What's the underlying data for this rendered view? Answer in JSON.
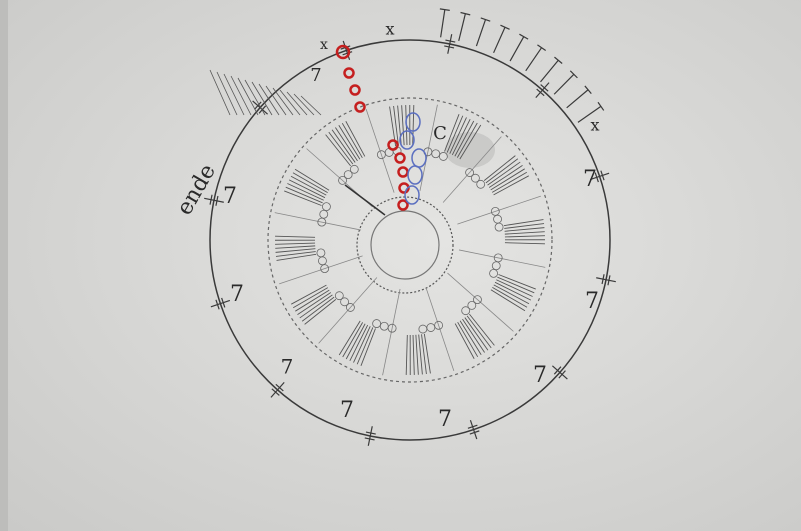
{
  "labels": [
    "ende",
    "7",
    "7",
    "7",
    "7",
    "7",
    "7",
    "7",
    "7",
    "7",
    "x",
    "x",
    "x",
    "C"
  ]
}
